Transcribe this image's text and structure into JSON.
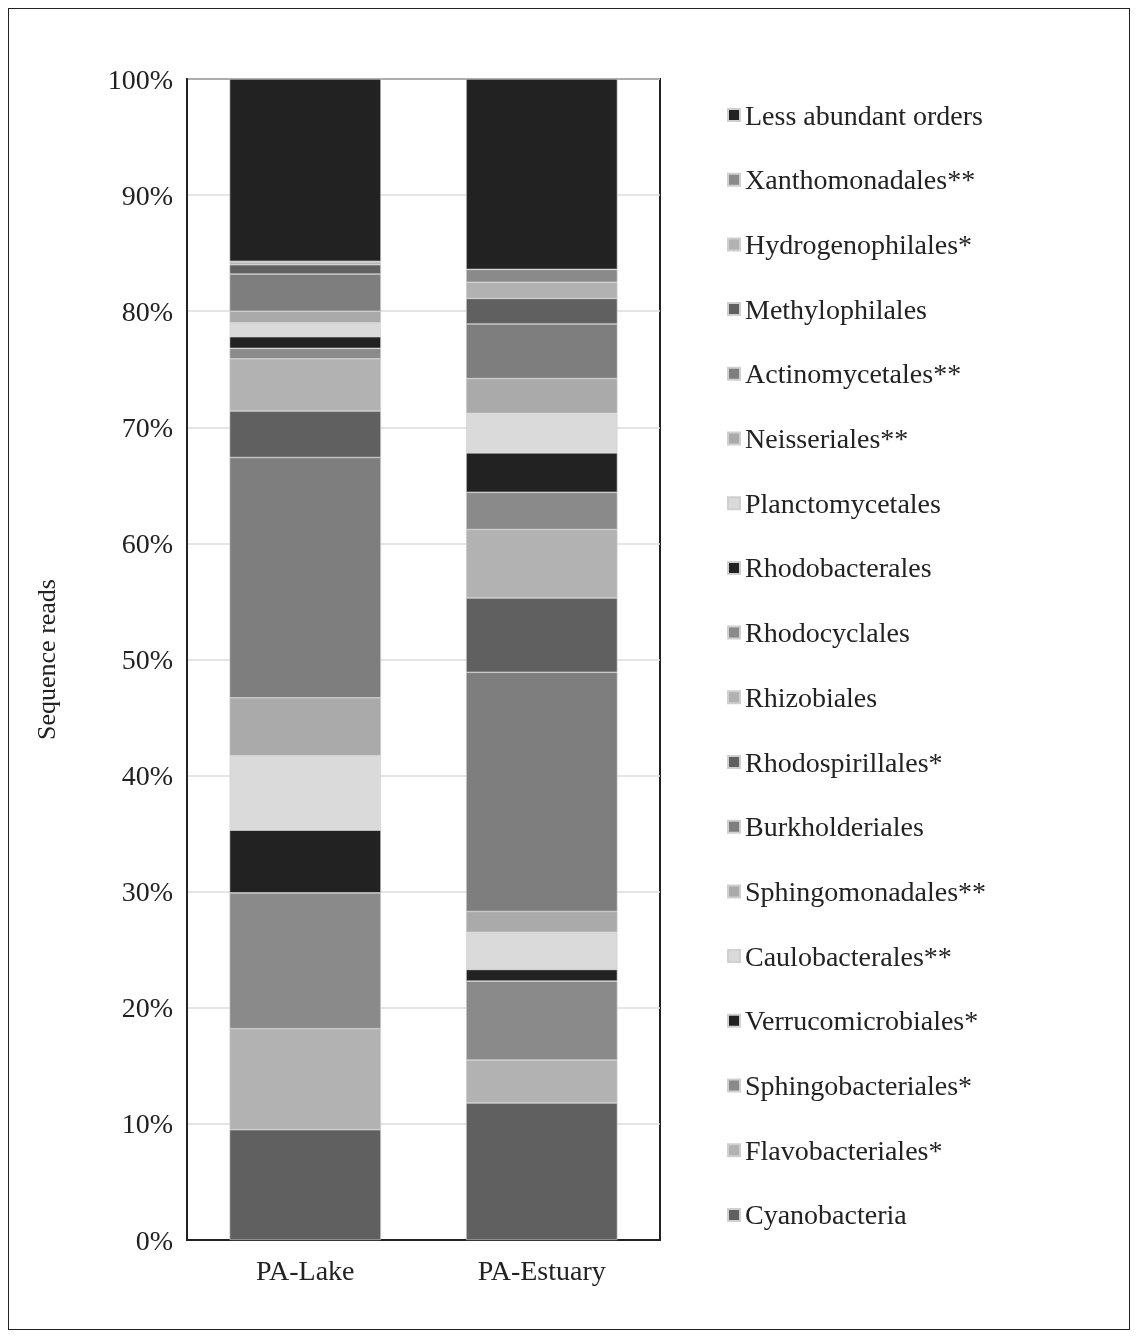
{
  "chart_data": {
    "type": "bar",
    "stacked": true,
    "ylabel": "Sequence reads",
    "categories": [
      "PA-Lake",
      "PA-Estuary"
    ],
    "ylim": [
      0,
      100
    ],
    "yticks": [
      {
        "value": 0,
        "label": "0%"
      },
      {
        "value": 10,
        "label": "10%"
      },
      {
        "value": 20,
        "label": "20%"
      },
      {
        "value": 30,
        "label": "30%"
      },
      {
        "value": 40,
        "label": "40%"
      },
      {
        "value": 50,
        "label": "50%"
      },
      {
        "value": 60,
        "label": "60%"
      },
      {
        "value": 70,
        "label": "70%"
      },
      {
        "value": 80,
        "label": "80%"
      },
      {
        "value": 90,
        "label": "90%"
      },
      {
        "value": 100,
        "label": "100%"
      }
    ],
    "grid": "y",
    "legend": "right",
    "series": [
      {
        "name": "Cyanobacteria",
        "color": "#606060",
        "values": [
          9.5,
          11.8
        ]
      },
      {
        "name": "Flavobacteriales*",
        "color": "#b2b2b2",
        "values": [
          8.7,
          3.7
        ]
      },
      {
        "name": "Sphingobacteriales*",
        "color": "#8a8a8a",
        "values": [
          11.7,
          6.8
        ]
      },
      {
        "name": "Verrucomicrobiales*",
        "color": "#222222",
        "values": [
          5.4,
          1.0
        ]
      },
      {
        "name": "Caulobacterales**",
        "color": "#dadada",
        "values": [
          6.4,
          3.2
        ]
      },
      {
        "name": "Sphingomonadales**",
        "color": "#aaaaaa",
        "values": [
          5.0,
          1.8
        ]
      },
      {
        "name": "Burkholderiales",
        "color": "#7e7e7e",
        "values": [
          20.7,
          20.6
        ]
      },
      {
        "name": "Rhodospirillales*",
        "color": "#606060",
        "values": [
          4.0,
          6.4
        ]
      },
      {
        "name": "Rhizobiales",
        "color": "#b2b2b2",
        "values": [
          4.5,
          5.9
        ]
      },
      {
        "name": "Rhodocyclales",
        "color": "#8a8a8a",
        "values": [
          0.9,
          3.2
        ]
      },
      {
        "name": "Rhodobacterales",
        "color": "#222222",
        "values": [
          1.0,
          3.4
        ]
      },
      {
        "name": "Planctomycetales",
        "color": "#dadada",
        "values": [
          1.2,
          3.4
        ]
      },
      {
        "name": "Neisseriales**",
        "color": "#aaaaaa",
        "values": [
          1.0,
          3.0
        ]
      },
      {
        "name": "Actinomycetales**",
        "color": "#7e7e7e",
        "values": [
          3.2,
          4.7
        ]
      },
      {
        "name": "Methylophilales",
        "color": "#606060",
        "values": [
          0.8,
          2.2
        ]
      },
      {
        "name": "Hydrogenophilales*",
        "color": "#b2b2b2",
        "values": [
          0.2,
          1.4
        ]
      },
      {
        "name": "Xanthomonadales**",
        "color": "#8a8a8a",
        "values": [
          0.1,
          1.1
        ]
      },
      {
        "name": "Less abundant orders",
        "color": "#222222",
        "values": [
          15.7,
          16.4
        ]
      }
    ]
  }
}
